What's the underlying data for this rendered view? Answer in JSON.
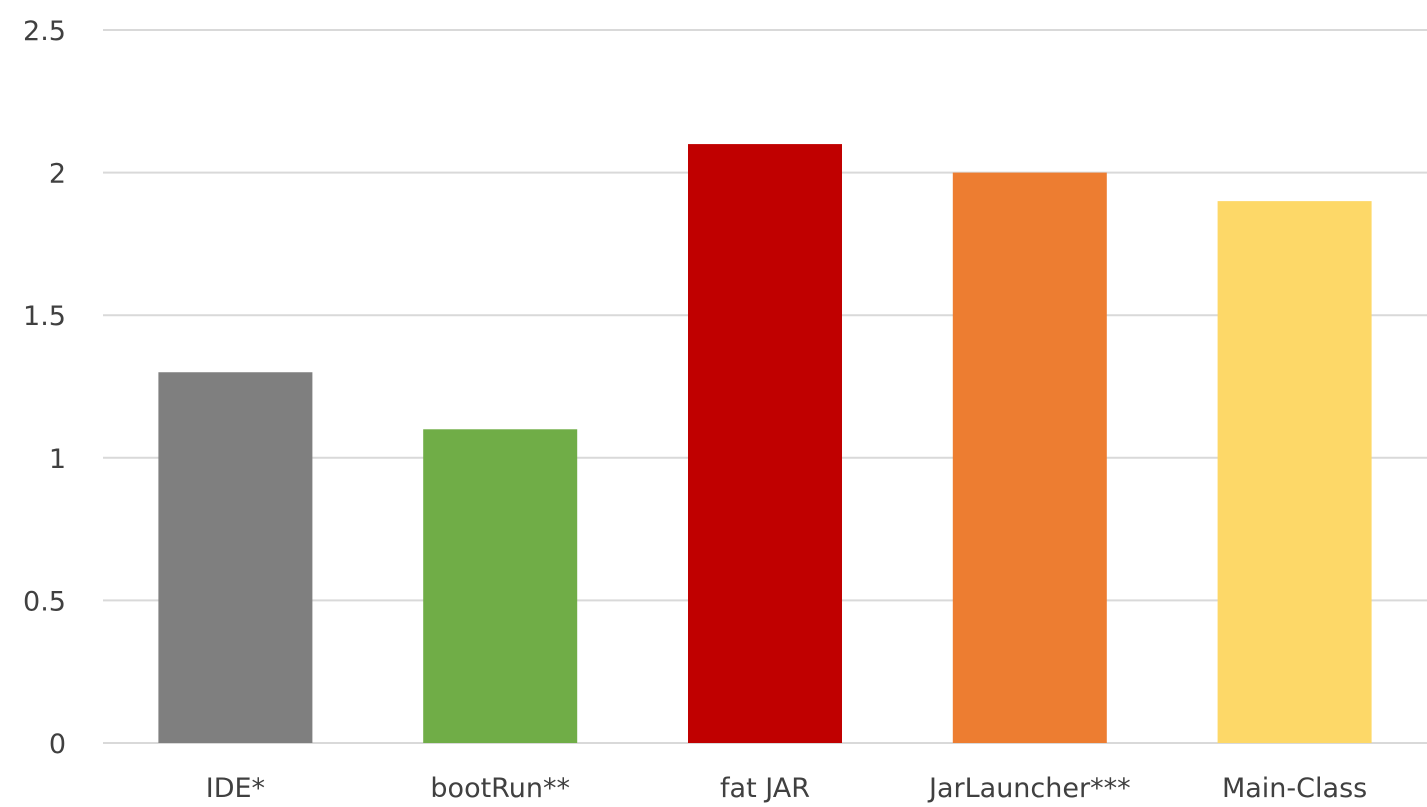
{
  "chart_data": {
    "type": "bar",
    "title": "",
    "xlabel": "",
    "ylabel": "",
    "categories": [
      "IDE*",
      "bootRun**",
      "fat JAR",
      "JarLauncher***",
      "Main-Class"
    ],
    "values": [
      1.3,
      1.1,
      2.1,
      2.0,
      1.9
    ],
    "colors": [
      "#7f7f7f",
      "#70ad47",
      "#c00000",
      "#ed7d31",
      "#fdd868"
    ],
    "ylim": [
      0,
      2.5
    ],
    "yticks": [
      "0",
      "0.5",
      "1",
      "1.5",
      "2",
      "2.5"
    ],
    "grid": true,
    "legend": "none"
  }
}
